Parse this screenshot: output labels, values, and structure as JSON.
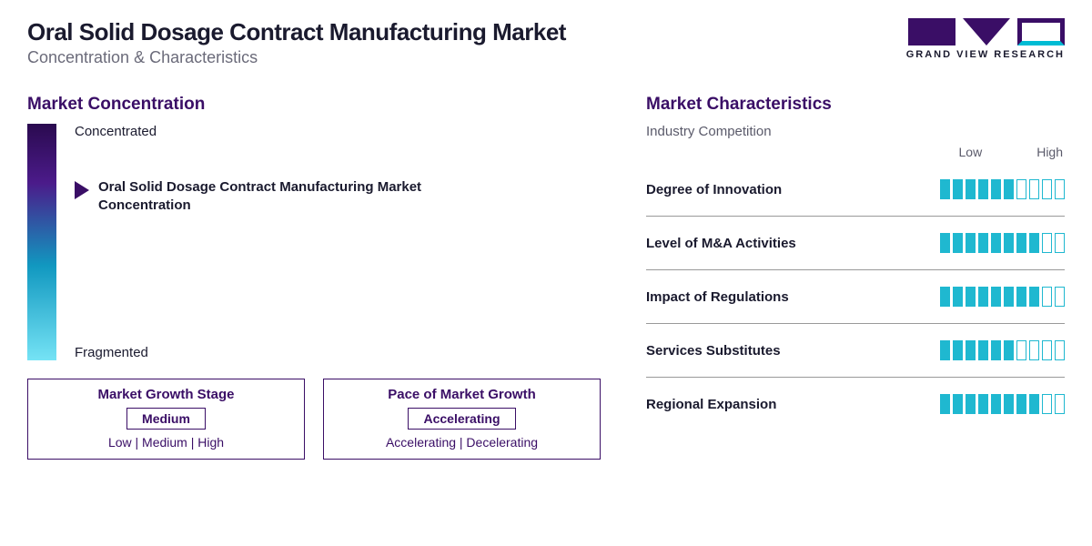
{
  "header": {
    "title": "Oral Solid Dosage Contract Manufacturing Market",
    "subtitle": "Concentration & Characteristics",
    "logo_text": "GRAND VIEW RESEARCH",
    "logo_colors": {
      "primary": "#3a0e66",
      "accent": "#00bcd4"
    }
  },
  "concentration": {
    "section_title": "Market Concentration",
    "gradient": {
      "top_label": "Concentrated",
      "bottom_label": "Fragmented",
      "colors": [
        "#2a0a4f",
        "#4b1b8a",
        "#1198c0",
        "#75e3f5"
      ]
    },
    "marker": {
      "position_pct": 23,
      "label": "Oral Solid Dosage Contract Manufacturing Market Concentration",
      "arrow_color": "#3a0e66"
    },
    "stat_boxes": [
      {
        "title": "Market Growth Stage",
        "value": "Medium",
        "options": "Low | Medium | High"
      },
      {
        "title": "Pace of Market Growth",
        "value": "Accelerating",
        "options": "Accelerating | Decelerating"
      }
    ],
    "box_border_color": "#3a0e66"
  },
  "characteristics": {
    "section_title": "Market Characteristics",
    "section_sub": "Industry Competition",
    "scale_low": "Low",
    "scale_high": "High",
    "bar_total": 10,
    "bar_color_filled": "#1fb8d0",
    "bar_color_empty": "#ffffff",
    "bar_border": "#1fb8d0",
    "rows": [
      {
        "label": "Degree of Innovation",
        "filled": 6
      },
      {
        "label": "Level of M&A Activities",
        "filled": 8
      },
      {
        "label": "Impact of Regulations",
        "filled": 8
      },
      {
        "label": "Services Substitutes",
        "filled": 6
      },
      {
        "label": "Regional Expansion",
        "filled": 8
      }
    ]
  },
  "colors": {
    "title_text": "#1a1a2e",
    "subtitle_text": "#6b6b7a",
    "section_title": "#3a0e66",
    "divider": "#999999",
    "background": "#ffffff"
  }
}
